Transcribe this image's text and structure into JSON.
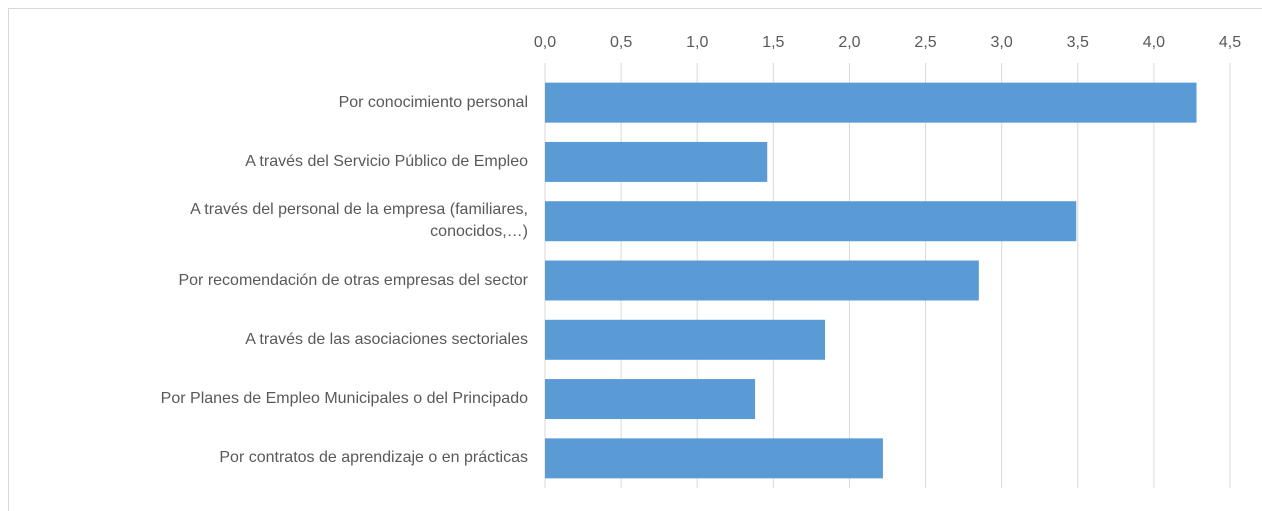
{
  "chart_data": {
    "type": "barh",
    "categories": [
      "Por conocimiento personal",
      "A través del Servicio Público de Empleo",
      "A través del personal de la empresa (familiares,\nconocidos,…)",
      "Por recomendación de otras empresas del sector",
      "A través de las asociaciones sectoriales",
      "Por Planes de Empleo Municipales o del Principado",
      "Por contratos de aprendizaje o en prácticas"
    ],
    "values": [
      4.28,
      1.46,
      3.49,
      2.85,
      1.84,
      1.38,
      2.22
    ],
    "color": "#5b9bd5",
    "xlim": [
      0,
      4.5
    ],
    "xticks": [
      {
        "value": 0,
        "label": "0,0"
      },
      {
        "value": 0.5,
        "label": "0,5"
      },
      {
        "value": 1,
        "label": "1,0"
      },
      {
        "value": 1.5,
        "label": "1,5"
      },
      {
        "value": 2,
        "label": "2,0"
      },
      {
        "value": 2.5,
        "label": "2,5"
      },
      {
        "value": 3,
        "label": "3,0"
      },
      {
        "value": 3.5,
        "label": "3,5"
      },
      {
        "value": 4,
        "label": "4,0"
      },
      {
        "value": 4.5,
        "label": "4,5"
      }
    ],
    "grid": true
  }
}
